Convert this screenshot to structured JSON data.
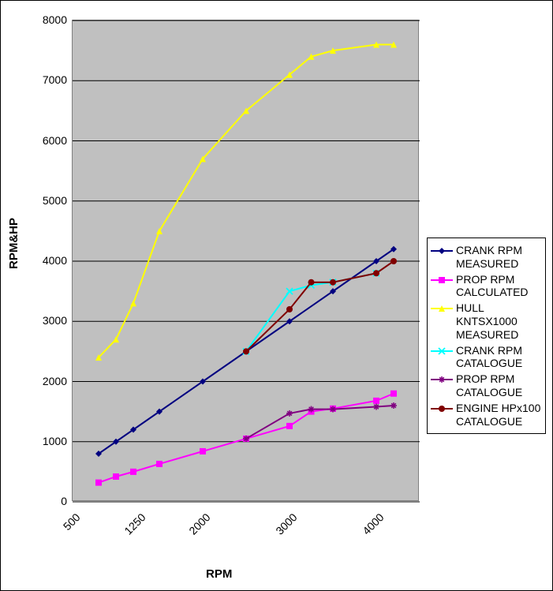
{
  "chart": {
    "type": "line",
    "y_axis_title": "RPM&HP",
    "x_axis_title": "RPM",
    "background_color": "#ffffff",
    "plot_background_color": "#c0c0c0",
    "grid_color": "#000000",
    "border_color": "#000000",
    "title_fontsize": 15,
    "tick_fontsize": 14,
    "legend_fontsize": 14,
    "xlim": [
      500,
      4500
    ],
    "ylim": [
      0,
      8000
    ],
    "ytick_step": 1000,
    "y_ticks": [
      0,
      1000,
      2000,
      3000,
      4000,
      5000,
      6000,
      7000,
      8000
    ],
    "x_ticks": [
      500,
      1250,
      2000,
      3000,
      4000
    ],
    "x_tick_labels": [
      "500",
      "1250",
      "2000",
      "3000",
      "4000"
    ],
    "series": [
      {
        "name": "CRANK RPM MEASURED",
        "color": "#000080",
        "marker": "diamond",
        "x": [
          800,
          1000,
          1200,
          1500,
          2000,
          2500,
          3000,
          3500,
          4000,
          4200
        ],
        "y": [
          800,
          1000,
          1200,
          1500,
          2000,
          2500,
          3000,
          3500,
          4000,
          4200
        ]
      },
      {
        "name": "PROP RPM CALCULATED",
        "color": "#ff00ff",
        "marker": "square",
        "x": [
          800,
          1000,
          1200,
          1500,
          2000,
          2500,
          3000,
          3250,
          3500,
          4000,
          4200
        ],
        "y": [
          320,
          420,
          500,
          630,
          840,
          1050,
          1260,
          1500,
          1550,
          1680,
          1800
        ]
      },
      {
        "name": "HULL KNTSX1000 MEASURED",
        "color": "#ffff00",
        "marker": "triangle",
        "x": [
          800,
          1000,
          1200,
          1500,
          2000,
          2500,
          3000,
          3250,
          3500,
          4000,
          4200
        ],
        "y": [
          2400,
          2700,
          3300,
          4500,
          5700,
          6500,
          7100,
          7400,
          7500,
          7600,
          7600
        ]
      },
      {
        "name": "CRANK RPM CATALOGUE",
        "color": "#00ffff",
        "marker": "x",
        "x": [
          2500,
          3000,
          3250,
          3500,
          4000
        ],
        "y": [
          2500,
          3500,
          3600,
          3650,
          3800
        ]
      },
      {
        "name": "PROP RPM CATALOGUE",
        "color": "#800080",
        "marker": "star",
        "x": [
          2500,
          3000,
          3250,
          3500,
          4000,
          4200
        ],
        "y": [
          1050,
          1470,
          1540,
          1540,
          1580,
          1600
        ]
      },
      {
        "name": "ENGINE HPx100 CATALOGUE",
        "color": "#800000",
        "marker": "circle",
        "x": [
          2500,
          3000,
          3250,
          3500,
          4000,
          4200
        ],
        "y": [
          2500,
          3200,
          3650,
          3650,
          3800,
          4000
        ]
      }
    ]
  }
}
